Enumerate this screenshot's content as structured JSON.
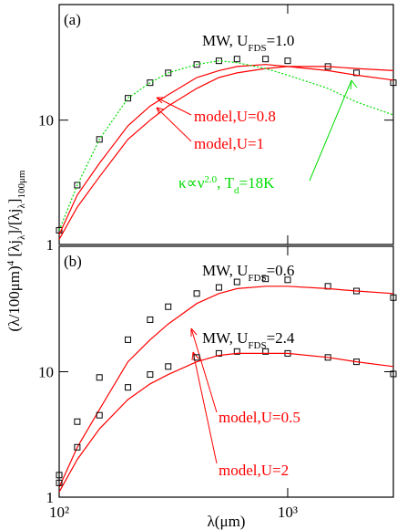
{
  "figure": {
    "xlabel": "λ(μm)",
    "ylabel_parts": [
      {
        "text": "(λ/100μm)"
      },
      {
        "text": "4",
        "shift": "sup"
      },
      {
        "text": " [λj"
      },
      {
        "text": "λ",
        "shift": "sub"
      },
      {
        "text": "]/[λj"
      },
      {
        "text": "λ",
        "shift": "sub"
      },
      {
        "text": "]"
      },
      {
        "text": "100μm",
        "shift": "sub"
      }
    ]
  },
  "chart_data": [
    {
      "type": "line",
      "panel_label": "(a)",
      "xscale": "log",
      "yscale": "log",
      "xlim": [
        100,
        2900
      ],
      "ylim": [
        1,
        85
      ],
      "xticks": [
        {
          "value": 100,
          "label": "10²"
        },
        {
          "value": 1000,
          "label": "10³"
        }
      ],
      "yticks": [
        1,
        10
      ],
      "x": [
        100,
        120,
        150,
        200,
        250,
        300,
        400,
        500,
        600,
        800,
        1000,
        1500,
        2000,
        2900
      ],
      "series": [
        {
          "name": "MW, U_FDS=1.0",
          "color": "#000000",
          "marker": "square",
          "values": [
            1.3,
            3,
            7,
            15,
            20,
            24,
            28,
            30,
            31,
            31,
            30,
            27,
            24,
            20
          ]
        },
        {
          "name": "model,U=0.8",
          "color": "#ff0000",
          "style": "solid",
          "values": [
            1.1,
            2,
            3.5,
            7,
            10,
            13,
            18,
            22,
            24,
            26,
            27,
            27,
            26,
            25
          ]
        },
        {
          "name": "model,U=1",
          "color": "#ff0000",
          "style": "solid",
          "values": [
            1.2,
            2.5,
            4.5,
            9,
            13,
            16,
            22,
            25,
            27,
            28,
            27,
            25,
            23,
            21
          ]
        },
        {
          "name": "κ∝ν2.0, Td=18K",
          "color": "#00dd00",
          "style": "dotted",
          "values": [
            1.3,
            3,
            7,
            15,
            20,
            24,
            28,
            30,
            29,
            26,
            23,
            18,
            14,
            11
          ]
        }
      ],
      "annotations": [
        {
          "color": "#000000",
          "parts": [
            {
              "text": "MW, U"
            },
            {
              "text": "FDS",
              "shift": "sub"
            },
            {
              "text": "=1.0"
            }
          ]
        },
        {
          "color": "#ff0000",
          "parts": [
            {
              "text": "model,U=0.8"
            }
          ]
        },
        {
          "color": "#ff0000",
          "parts": [
            {
              "text": "model,U=1"
            }
          ]
        },
        {
          "color": "#00dd00",
          "parts": [
            {
              "text": "κ∝ν"
            },
            {
              "text": "2.0",
              "shift": "sup"
            },
            {
              "text": ", T"
            },
            {
              "text": "d",
              "shift": "sub"
            },
            {
              "text": "=18K"
            }
          ]
        }
      ]
    },
    {
      "type": "line",
      "panel_label": "(b)",
      "xscale": "log",
      "yscale": "log",
      "xlim": [
        100,
        2900
      ],
      "ylim": [
        1,
        100
      ],
      "xticks": [
        {
          "value": 100,
          "label": "10²"
        },
        {
          "value": 1000,
          "label": "10³"
        }
      ],
      "yticks": [
        1,
        10
      ],
      "x": [
        100,
        120,
        150,
        200,
        250,
        300,
        400,
        500,
        600,
        800,
        1000,
        1500,
        2000,
        2900
      ],
      "series": [
        {
          "name": "MW, U_FDS=0.6",
          "color": "#000000",
          "marker": "square",
          "values": [
            1.5,
            4,
            9,
            18,
            26,
            33,
            42,
            47,
            52,
            55,
            54,
            48,
            44,
            39
          ]
        },
        {
          "name": "model,U=0.5",
          "color": "#ff0000",
          "style": "solid",
          "values": [
            1.2,
            2.5,
            5,
            12,
            18,
            24,
            35,
            42,
            46,
            48,
            48,
            46,
            44,
            42
          ]
        },
        {
          "name": "MW, U_FDS=2.4",
          "color": "#000000",
          "marker": "square",
          "values": [
            1.3,
            2.5,
            4.5,
            7.5,
            9.5,
            11,
            13,
            14,
            14.5,
            14.5,
            14,
            13,
            12,
            9.6
          ]
        },
        {
          "name": "model,U=2",
          "color": "#ff0000",
          "style": "solid",
          "values": [
            1.1,
            2,
            3.5,
            6,
            8,
            9.5,
            12,
            13.5,
            14,
            14,
            14,
            13,
            12,
            11
          ]
        }
      ],
      "annotations": [
        {
          "color": "#000000",
          "parts": [
            {
              "text": "MW, U"
            },
            {
              "text": "FDS",
              "shift": "sub"
            },
            {
              "text": "=0.6"
            }
          ]
        },
        {
          "color": "#000000",
          "parts": [
            {
              "text": "MW, U"
            },
            {
              "text": "FDS",
              "shift": "sub"
            },
            {
              "text": "=2.4"
            }
          ]
        },
        {
          "color": "#ff0000",
          "parts": [
            {
              "text": "model,U=0.5"
            }
          ]
        },
        {
          "color": "#ff0000",
          "parts": [
            {
              "text": "model,U=2"
            }
          ]
        }
      ]
    }
  ]
}
